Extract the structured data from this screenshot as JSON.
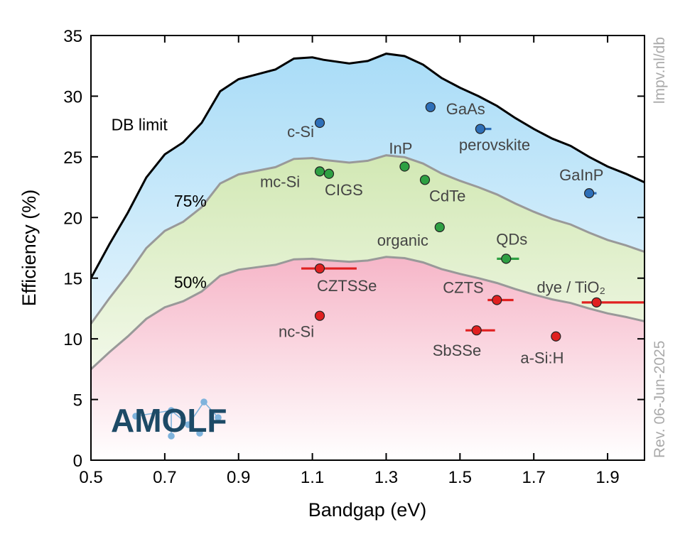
{
  "chart_data": {
    "type": "scatter",
    "xlabel": "Bandgap (eV)",
    "ylabel": "Efficiency (%)",
    "xlim": [
      0.5,
      2.0
    ],
    "ylim": [
      0,
      35
    ],
    "xticks": [
      "0.5",
      "0.7",
      "0.9",
      "1.1",
      "1.3",
      "1.5",
      "1.7",
      "1.9"
    ],
    "yticks": [
      "0",
      "5",
      "10",
      "15",
      "20",
      "25",
      "30",
      "35"
    ],
    "grid": false,
    "limit_curve": {
      "name": "DB limit",
      "x": [
        0.5,
        0.55,
        0.6,
        0.65,
        0.7,
        0.75,
        0.8,
        0.85,
        0.9,
        0.95,
        1.0,
        1.05,
        1.1,
        1.13,
        1.2,
        1.25,
        1.3,
        1.35,
        1.4,
        1.45,
        1.5,
        1.55,
        1.6,
        1.65,
        1.7,
        1.75,
        1.8,
        1.85,
        1.9,
        1.95,
        2.0
      ],
      "y": [
        15.0,
        17.8,
        20.4,
        23.3,
        25.2,
        26.2,
        27.8,
        30.4,
        31.4,
        31.8,
        32.2,
        33.1,
        33.2,
        33.0,
        32.7,
        32.9,
        33.5,
        33.3,
        32.6,
        31.5,
        30.7,
        30.0,
        29.2,
        28.2,
        27.3,
        26.5,
        25.9,
        25.0,
        24.2,
        23.6,
        22.9
      ]
    },
    "contours": [
      {
        "label": "75%",
        "fraction": 0.75
      },
      {
        "label": "50%",
        "fraction": 0.5
      }
    ],
    "points": [
      {
        "label": "c-Si",
        "x": 1.12,
        "y": 27.8,
        "color": "#2e6fb8",
        "xerr": [
          0,
          0
        ]
      },
      {
        "label": "GaAs",
        "x": 1.42,
        "y": 29.1,
        "color": "#2e6fb8",
        "xerr": [
          0,
          0
        ]
      },
      {
        "label": "perovskite",
        "x": 1.555,
        "y": 27.3,
        "color": "#2e6fb8",
        "xerr": [
          0,
          0.03
        ]
      },
      {
        "label": "GaInP",
        "x": 1.85,
        "y": 22.0,
        "color": "#2e6fb8",
        "xerr": [
          0,
          0.02
        ]
      },
      {
        "label": "mc-Si",
        "x": 1.12,
        "y": 23.8,
        "color": "#2ea043",
        "xerr": [
          0,
          0
        ]
      },
      {
        "label": "CIGS",
        "x": 1.145,
        "y": 23.6,
        "color": "#2ea043",
        "xerr": [
          0,
          0
        ]
      },
      {
        "label": "InP",
        "x": 1.35,
        "y": 24.2,
        "color": "#2ea043",
        "xerr": [
          0,
          0
        ]
      },
      {
        "label": "CdTe",
        "x": 1.405,
        "y": 23.1,
        "color": "#2ea043",
        "xerr": [
          0,
          0
        ]
      },
      {
        "label": "organic",
        "x": 1.445,
        "y": 19.2,
        "color": "#2ea043",
        "xerr": [
          0,
          0
        ]
      },
      {
        "label": "QDs",
        "x": 1.625,
        "y": 16.6,
        "color": "#2ea043",
        "xerr": [
          0.025,
          0.035
        ]
      },
      {
        "label": "CZTSSe",
        "x": 1.12,
        "y": 15.8,
        "color": "#e02020",
        "xerr": [
          0.05,
          0.1
        ]
      },
      {
        "label": "nc-Si",
        "x": 1.12,
        "y": 11.9,
        "color": "#e02020",
        "xerr": [
          0,
          0
        ]
      },
      {
        "label": "CZTS",
        "x": 1.6,
        "y": 13.2,
        "color": "#e02020",
        "xerr": [
          0.025,
          0.045
        ]
      },
      {
        "label": "SbSSe",
        "x": 1.545,
        "y": 10.7,
        "color": "#e02020",
        "xerr": [
          0.03,
          0.05
        ]
      },
      {
        "label": "a-Si:H",
        "x": 1.76,
        "y": 10.2,
        "color": "#e02020",
        "xerr": [
          0,
          0
        ]
      },
      {
        "label": "dye / TiO₂",
        "x": 1.87,
        "y": 13.0,
        "color": "#e02020",
        "xerr": [
          0.04,
          0.13
        ]
      }
    ],
    "annotations": [
      "lmpv.nl/db",
      "Rev. 06-Jun-2025"
    ]
  },
  "logo": {
    "text": "AMOLF",
    "color": "#1d4a66"
  }
}
